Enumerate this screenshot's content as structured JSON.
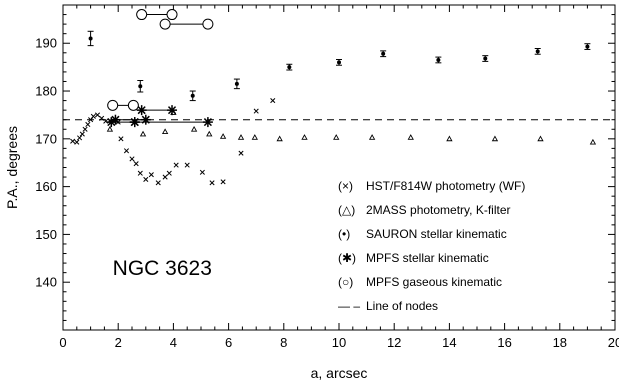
{
  "chart_data": {
    "type": "scatter",
    "title": "NGC 3623",
    "xlabel": "a, arcsec",
    "ylabel": "P.A., degrees",
    "xlim": [
      0,
      20
    ],
    "ylim": [
      130,
      198
    ],
    "x_ticks": [
      0,
      2,
      4,
      6,
      8,
      10,
      12,
      14,
      16,
      18,
      20
    ],
    "y_ticks": [
      140,
      150,
      160,
      170,
      180,
      190
    ],
    "grid": false,
    "legend_position": "bottom-right",
    "series": [
      {
        "key": "hst",
        "name": "HST/F814W photometry (WF)",
        "symbol": "(×)",
        "marker": "x",
        "points": [
          [
            0.35,
            169.5
          ],
          [
            0.5,
            169.3
          ],
          [
            0.6,
            170.2
          ],
          [
            0.7,
            171.0
          ],
          [
            0.8,
            172.0
          ],
          [
            0.9,
            173.0
          ],
          [
            1.0,
            174.0
          ],
          [
            1.1,
            174.7
          ],
          [
            1.25,
            175.0
          ],
          [
            1.4,
            174.3
          ],
          [
            1.55,
            173.7
          ],
          [
            1.7,
            173.8
          ],
          [
            2.0,
            173.5
          ],
          [
            2.1,
            170.0
          ],
          [
            2.3,
            167.5
          ],
          [
            2.5,
            165.8
          ],
          [
            2.65,
            164.8
          ],
          [
            2.8,
            162.8
          ],
          [
            3.0,
            161.5
          ],
          [
            3.2,
            162.5
          ],
          [
            3.45,
            160.8
          ],
          [
            3.7,
            162.0
          ],
          [
            3.85,
            162.8
          ],
          [
            4.1,
            164.5
          ],
          [
            4.5,
            164.5
          ],
          [
            5.05,
            163.0
          ],
          [
            5.4,
            160.8
          ],
          [
            5.8,
            161.0
          ],
          [
            6.45,
            167.0
          ],
          [
            7.0,
            175.8
          ],
          [
            7.6,
            178.0
          ]
        ]
      },
      {
        "key": "twomass",
        "name": "2MASS photometry, K-filter",
        "symbol": "(△)",
        "marker": "triangle",
        "points": [
          [
            1.7,
            172.0
          ],
          [
            2.9,
            171.0
          ],
          [
            3.7,
            171.5
          ],
          [
            4.0,
            175.5
          ],
          [
            4.75,
            172.0
          ],
          [
            5.3,
            171.0
          ],
          [
            5.8,
            170.5
          ],
          [
            6.45,
            170.3
          ],
          [
            6.95,
            170.3
          ],
          [
            7.85,
            170.0
          ],
          [
            8.75,
            170.3
          ],
          [
            9.9,
            170.3
          ],
          [
            11.2,
            170.3
          ],
          [
            12.6,
            170.3
          ],
          [
            14.0,
            170.0
          ],
          [
            15.65,
            170.0
          ],
          [
            17.3,
            170.0
          ],
          [
            19.2,
            169.3
          ]
        ]
      },
      {
        "key": "sauron",
        "name": "SAURON stellar kinematic",
        "symbol": "(•)",
        "marker": "dot",
        "points": [
          [
            1.0,
            191.0,
            1.5
          ],
          [
            2.8,
            181.0,
            1.2
          ],
          [
            4.7,
            179.0,
            1.0
          ],
          [
            6.3,
            181.5,
            1.0
          ],
          [
            8.2,
            185.0,
            0.6
          ],
          [
            10.0,
            186.0,
            0.6
          ],
          [
            11.6,
            187.8,
            0.6
          ],
          [
            13.6,
            186.5,
            0.6
          ],
          [
            15.3,
            186.8,
            0.6
          ],
          [
            17.2,
            188.3,
            0.6
          ],
          [
            19.0,
            189.3,
            0.6
          ]
        ]
      },
      {
        "key": "mpfs_star",
        "name": "MPFS stellar kinematic",
        "symbol": "(✱)",
        "marker": "asterisk",
        "segments": [
          [
            [
              1.9,
              174.0
            ],
            [
              3.0,
              174.0
            ]
          ],
          [
            [
              2.85,
              176.0
            ],
            [
              3.95,
              176.0
            ]
          ],
          [
            [
              2.6,
              173.5
            ],
            [
              5.25,
              173.5
            ]
          ],
          [
            [
              1.75,
              173.5
            ],
            [
              2.6,
              173.5
            ]
          ]
        ]
      },
      {
        "key": "mpfs_gas",
        "name": "MPFS gaseous kinematic",
        "symbol": "(○)",
        "marker": "circle",
        "segments": [
          [
            [
              2.85,
              196.0
            ],
            [
              3.95,
              196.0
            ]
          ],
          [
            [
              3.7,
              194.0
            ],
            [
              5.25,
              194.0
            ]
          ],
          [
            [
              1.8,
              177.0
            ],
            [
              2.55,
              177.0
            ]
          ]
        ]
      }
    ],
    "line_of_nodes": {
      "name": "Line of nodes",
      "symbol": "— –",
      "y": 174
    }
  }
}
